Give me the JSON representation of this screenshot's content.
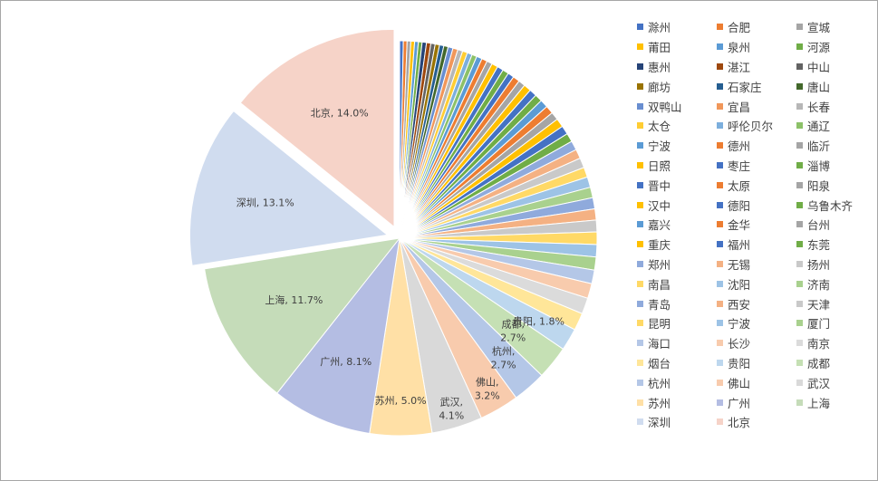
{
  "chart_data": {
    "type": "pie",
    "start_angle_deg": 0,
    "exploded": [
      "深圳",
      "北京"
    ],
    "slices": [
      {
        "name": "滁州",
        "value": 0.3,
        "color": "#4472c4"
      },
      {
        "name": "合肥",
        "value": 0.3,
        "color": "#ed7d31"
      },
      {
        "name": "宣城",
        "value": 0.3,
        "color": "#a5a5a5"
      },
      {
        "name": "莆田",
        "value": 0.3,
        "color": "#ffc000"
      },
      {
        "name": "泉州",
        "value": 0.3,
        "color": "#5b9bd5"
      },
      {
        "name": "河源",
        "value": 0.3,
        "color": "#70ad47"
      },
      {
        "name": "惠州",
        "value": 0.35,
        "color": "#264478"
      },
      {
        "name": "湛江",
        "value": 0.35,
        "color": "#9e480e"
      },
      {
        "name": "中山",
        "value": 0.35,
        "color": "#636363"
      },
      {
        "name": "廊坊",
        "value": 0.35,
        "color": "#997300"
      },
      {
        "name": "石家庄",
        "value": 0.35,
        "color": "#255e91"
      },
      {
        "name": "唐山",
        "value": 0.35,
        "color": "#43682b"
      },
      {
        "name": "双鸭山",
        "value": 0.4,
        "color": "#698ed0"
      },
      {
        "name": "宜昌",
        "value": 0.4,
        "color": "#f1975a"
      },
      {
        "name": "长春",
        "value": 0.4,
        "color": "#b7b7b7"
      },
      {
        "name": "太仓",
        "value": 0.4,
        "color": "#ffcd33"
      },
      {
        "name": "呼伦贝尔",
        "value": 0.4,
        "color": "#7cafdd"
      },
      {
        "name": "通辽",
        "value": 0.4,
        "color": "#8cc168"
      },
      {
        "name": "宁波",
        "value": 0.45,
        "color": "#5b9bd5"
      },
      {
        "name": "德州",
        "value": 0.45,
        "color": "#ed7d31"
      },
      {
        "name": "临沂",
        "value": 0.45,
        "color": "#a5a5a5"
      },
      {
        "name": "日照",
        "value": 0.5,
        "color": "#ffc000"
      },
      {
        "name": "枣庄",
        "value": 0.5,
        "color": "#4472c4"
      },
      {
        "name": "淄博",
        "value": 0.5,
        "color": "#70ad47"
      },
      {
        "name": "晋中",
        "value": 0.5,
        "color": "#4472c4"
      },
      {
        "name": "太原",
        "value": 0.55,
        "color": "#ed7d31"
      },
      {
        "name": "阳泉",
        "value": 0.55,
        "color": "#a5a5a5"
      },
      {
        "name": "汉中",
        "value": 0.6,
        "color": "#ffc000"
      },
      {
        "name": "德阳",
        "value": 0.6,
        "color": "#4472c4"
      },
      {
        "name": "乌鲁木齐",
        "value": 0.6,
        "color": "#70ad47"
      },
      {
        "name": "嘉兴",
        "value": 0.65,
        "color": "#5b9bd5"
      },
      {
        "name": "金华",
        "value": 0.65,
        "color": "#ed7d31"
      },
      {
        "name": "台州",
        "value": 0.65,
        "color": "#a5a5a5"
      },
      {
        "name": "重庆",
        "value": 0.7,
        "color": "#ffc000"
      },
      {
        "name": "福州",
        "value": 0.7,
        "color": "#4472c4"
      },
      {
        "name": "东莞",
        "value": 0.7,
        "color": "#70ad47"
      },
      {
        "name": "郑州",
        "value": 0.75,
        "color": "#8faadc"
      },
      {
        "name": "无锡",
        "value": 0.75,
        "color": "#f4b183"
      },
      {
        "name": "扬州",
        "value": 0.8,
        "color": "#c9c9c9"
      },
      {
        "name": "南昌",
        "value": 0.8,
        "color": "#ffd966"
      },
      {
        "name": "沈阳",
        "value": 0.85,
        "color": "#9dc3e6"
      },
      {
        "name": "济南",
        "value": 0.85,
        "color": "#a9d18e"
      },
      {
        "name": "青岛",
        "value": 0.9,
        "color": "#8faadc"
      },
      {
        "name": "西安",
        "value": 0.9,
        "color": "#f4b183"
      },
      {
        "name": "天津",
        "value": 0.95,
        "color": "#c9c9c9"
      },
      {
        "name": "昆明",
        "value": 1.0,
        "color": "#ffd966"
      },
      {
        "name": "宁波",
        "value": 1.0,
        "color": "#9dc3e6"
      },
      {
        "name": "厦门",
        "value": 1.05,
        "color": "#a9d18e"
      },
      {
        "name": "海口",
        "value": 1.1,
        "color": "#b4c7e7"
      },
      {
        "name": "长沙",
        "value": 1.2,
        "color": "#f8cbad"
      },
      {
        "name": "南京",
        "value": 1.3,
        "color": "#dbdbdb"
      },
      {
        "name": "烟台",
        "value": 1.4,
        "color": "#ffe699"
      },
      {
        "name": "贵阳",
        "value": 1.8,
        "color": "#bdd7ee"
      },
      {
        "name": "成都",
        "value": 2.7,
        "color": "#c5e0b4"
      },
      {
        "name": "杭州",
        "value": 2.7,
        "color": "#b4c7e7"
      },
      {
        "name": "佛山",
        "value": 3.2,
        "color": "#f8cbad"
      },
      {
        "name": "武汉",
        "value": 4.1,
        "color": "#d9d9d9"
      },
      {
        "name": "苏州",
        "value": 5.0,
        "color": "#ffe0a6"
      },
      {
        "name": "广州",
        "value": 8.1,
        "color": "#b4bde3"
      },
      {
        "name": "上海",
        "value": 11.7,
        "color": "#c5dcb9"
      },
      {
        "name": "深圳",
        "value": 13.1,
        "color": "#d0dcef"
      },
      {
        "name": "北京",
        "value": 14.0,
        "color": "#f6d3c8"
      }
    ],
    "data_labels": [
      {
        "city": "北京",
        "sep": ", ",
        "pct": "14.0%"
      },
      {
        "city": "深圳",
        "sep": ", ",
        "pct": "13.1%"
      },
      {
        "city": "上海",
        "sep": ", ",
        "pct": "11.7%"
      },
      {
        "city": "广州",
        "sep": ", ",
        "pct": "8.1%"
      },
      {
        "city": "苏州",
        "sep": ", ",
        "pct": "5.0%"
      },
      {
        "city": "武汉",
        "sep": ",",
        "pct": "4.1%"
      },
      {
        "city": "佛山",
        "sep": ",",
        "pct": "3.2%"
      },
      {
        "city": "杭州",
        "sep": ",",
        "pct": "2.7%"
      },
      {
        "city": "成都",
        "sep": ",",
        "pct": "2.7%"
      },
      {
        "city": "贵阳",
        "sep": ", ",
        "pct": "1.8%"
      }
    ],
    "legend_position": "right"
  }
}
